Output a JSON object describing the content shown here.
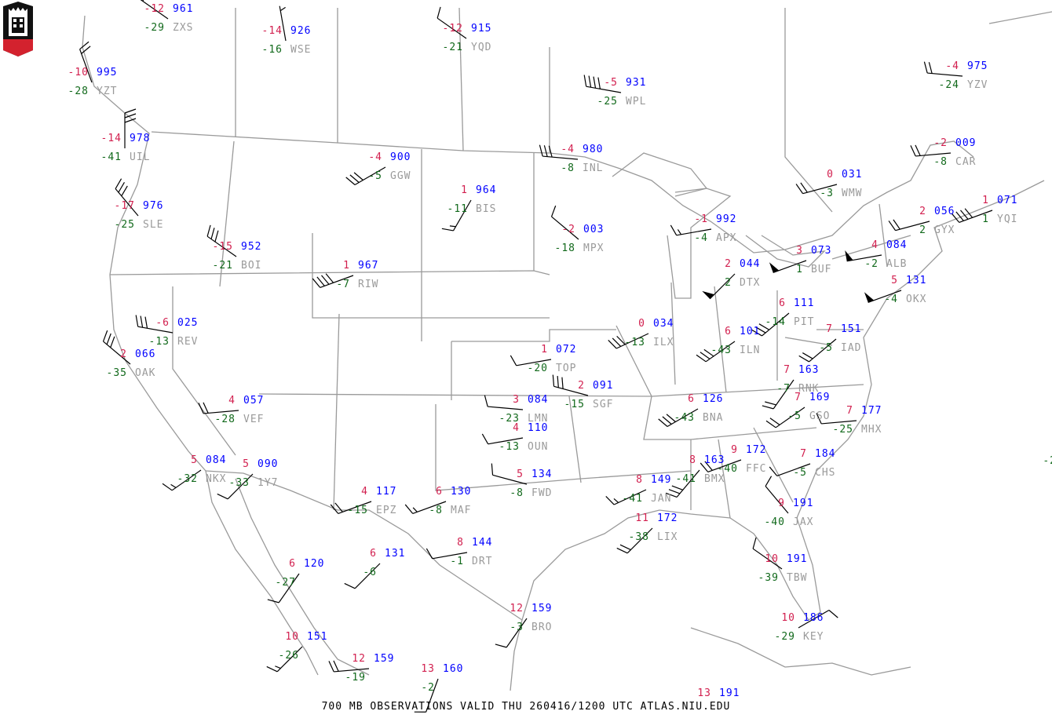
{
  "caption": "700 MB OBSERVATIONS VALID  THU 260416/1200 UTC  ATLAS.NIU.EDU",
  "logo": {
    "text": "NIU",
    "colors": {
      "top": "#111111",
      "bottom": "#d3222e"
    }
  },
  "colors": {
    "temperature": "#d2204f",
    "height": "#0000ff",
    "dewpoint": "#11691b",
    "station_id": "#9a9a9a",
    "map_lines": "#9a9a9a",
    "wind_barb": "#000000"
  },
  "stations": [
    {
      "id": "ZXS",
      "temp": "-12",
      "height": "961",
      "dewpoint": "-29",
      "wind_dir": 305,
      "wind_kt": 5
    },
    {
      "id": "WSE",
      "temp": "-14",
      "height": "926",
      "dewpoint": "-16",
      "wind_dir": 350,
      "wind_kt": 5
    },
    {
      "id": "YQD",
      "temp": "-12",
      "height": "915",
      "dewpoint": "-21",
      "wind_dir": 305,
      "wind_kt": 10
    },
    {
      "id": "YZT",
      "temp": "-10",
      "height": "995",
      "dewpoint": "-28",
      "wind_dir": 340,
      "wind_kt": 20
    },
    {
      "id": "WPL",
      "temp": "-5",
      "height": "931",
      "dewpoint": "-25",
      "wind_dir": 280,
      "wind_kt": 40
    },
    {
      "id": "YZV",
      "temp": "-4",
      "height": "975",
      "dewpoint": "-24",
      "wind_dir": 275,
      "wind_kt": 20
    },
    {
      "id": "UIL",
      "temp": "-14",
      "height": "978",
      "dewpoint": "-41",
      "wind_dir": 360,
      "wind_kt": 30
    },
    {
      "id": "INL",
      "temp": "-4",
      "height": "980",
      "dewpoint": "-8",
      "wind_dir": 275,
      "wind_kt": 30
    },
    {
      "id": "GGW",
      "temp": "-4",
      "height": "900",
      "dewpoint": "-5",
      "wind_dir": 240,
      "wind_kt": 30
    },
    {
      "id": "CAR",
      "temp": "-2",
      "height": "009",
      "dewpoint": "-8",
      "wind_dir": 265,
      "wind_kt": 20
    },
    {
      "id": "WMW",
      "temp": "0",
      "height": "031",
      "dewpoint": "-3",
      "wind_dir": 255,
      "wind_kt": 20
    },
    {
      "id": "SLE",
      "temp": "-17",
      "height": "976",
      "dewpoint": "-25",
      "wind_dir": 320,
      "wind_kt": 30
    },
    {
      "id": "BIS",
      "temp": "1",
      "height": "964",
      "dewpoint": "-11",
      "wind_dir": 210,
      "wind_kt": 15
    },
    {
      "id": "YQI",
      "temp": "1",
      "height": "071",
      "dewpoint": "1",
      "wind_dir": 250,
      "wind_kt": 40
    },
    {
      "id": "GYX",
      "temp": "2",
      "height": "056",
      "dewpoint": "2",
      "wind_dir": 255,
      "wind_kt": 20
    },
    {
      "id": "MPX",
      "temp": "-2",
      "height": "003",
      "dewpoint": "-18",
      "wind_dir": 310,
      "wind_kt": 10
    },
    {
      "id": "APX",
      "temp": "-1",
      "height": "992",
      "dewpoint": "-4",
      "wind_dir": 260,
      "wind_kt": 15
    },
    {
      "id": "BOI",
      "temp": "-15",
      "height": "952",
      "dewpoint": "-21",
      "wind_dir": 305,
      "wind_kt": 30
    },
    {
      "id": "RIW",
      "temp": "1",
      "height": "967",
      "dewpoint": "-7",
      "wind_dir": 250,
      "wind_kt": 40
    },
    {
      "id": "BUF",
      "temp": "3",
      "height": "073",
      "dewpoint": "1",
      "wind_dir": 250,
      "wind_kt": 50
    },
    {
      "id": "ALB",
      "temp": "4",
      "height": "084",
      "dewpoint": "-2",
      "wind_dir": 260,
      "wind_kt": 50
    },
    {
      "id": "DTX",
      "temp": "2",
      "height": "044",
      "dewpoint": "2",
      "wind_dir": 225,
      "wind_kt": 50
    },
    {
      "id": "OKX",
      "temp": "5",
      "height": "131",
      "dewpoint": "-4",
      "wind_dir": 250,
      "wind_kt": 50
    },
    {
      "id": "PIT",
      "temp": "6",
      "height": "111",
      "dewpoint": "-14",
      "wind_dir": 230,
      "wind_kt": 30
    },
    {
      "id": "ILN",
      "temp": "6",
      "height": "101",
      "dewpoint": "-43",
      "wind_dir": 235,
      "wind_kt": 30
    },
    {
      "id": "ILX",
      "temp": "0",
      "height": "034",
      "dewpoint": "-13",
      "wind_dir": 245,
      "wind_kt": 30
    },
    {
      "id": "REV",
      "temp": "-6",
      "height": "025",
      "dewpoint": "-13",
      "wind_dir": 280,
      "wind_kt": 30
    },
    {
      "id": "OAK",
      "temp": "2",
      "height": "066",
      "dewpoint": "-35",
      "wind_dir": 310,
      "wind_kt": 30
    },
    {
      "id": "TOP",
      "temp": "1",
      "height": "072",
      "dewpoint": "-20",
      "wind_dir": 260,
      "wind_kt": 10
    },
    {
      "id": "SGF",
      "temp": "2",
      "height": "091",
      "dewpoint": "-15",
      "wind_dir": 285,
      "wind_kt": 30
    },
    {
      "id": "IAD",
      "temp": "7",
      "height": "151",
      "dewpoint": "-5",
      "wind_dir": 230,
      "wind_kt": 20
    },
    {
      "id": "RNK",
      "temp": "7",
      "height": "163",
      "dewpoint": "-7",
      "wind_dir": 215,
      "wind_kt": 20
    },
    {
      "id": "GSO",
      "temp": "7",
      "height": "169",
      "dewpoint": "-5",
      "wind_dir": 235,
      "wind_kt": 20
    },
    {
      "id": "MHX",
      "temp": "7",
      "height": "177",
      "dewpoint": "-25",
      "wind_dir": 265,
      "wind_kt": 10
    },
    {
      "id": "BNA",
      "temp": "6",
      "height": "126",
      "dewpoint": "-43",
      "wind_dir": 240,
      "wind_kt": 30
    },
    {
      "id": "VEF",
      "temp": "4",
      "height": "057",
      "dewpoint": "-28",
      "wind_dir": 265,
      "wind_kt": 20
    },
    {
      "id": "LMN",
      "temp": "3",
      "height": "084",
      "dewpoint": "-23",
      "wind_dir": 275,
      "wind_kt": 10
    },
    {
      "id": "OUN",
      "temp": "4",
      "height": "110",
      "dewpoint": "-13",
      "wind_dir": 260,
      "wind_kt": 10
    },
    {
      "id": "NKX",
      "temp": "5",
      "height": "084",
      "dewpoint": "-32",
      "wind_dir": 235,
      "wind_kt": 15
    },
    {
      "id": "1Y7",
      "temp": "5",
      "height": "090",
      "dewpoint": "-33",
      "wind_dir": 225,
      "wind_kt": 10
    },
    {
      "id": "FWD",
      "temp": "5",
      "height": "134",
      "dewpoint": "-8",
      "wind_dir": 285,
      "wind_kt": 10
    },
    {
      "id": "EPZ",
      "temp": "4",
      "height": "117",
      "dewpoint": "-15",
      "wind_dir": 250,
      "wind_kt": 20
    },
    {
      "id": "MAF",
      "temp": "6",
      "height": "130",
      "dewpoint": "-8",
      "wind_dir": 250,
      "wind_kt": 15
    },
    {
      "id": "JAN",
      "temp": "8",
      "height": "149",
      "dewpoint": "-41",
      "wind_dir": 245,
      "wind_kt": 15
    },
    {
      "id": "BMX",
      "temp": "8",
      "height": "163",
      "dewpoint": "-41",
      "wind_dir": 220,
      "wind_kt": 30
    },
    {
      "id": "FFC",
      "temp": "9",
      "height": "172",
      "dewpoint": "-40",
      "wind_dir": 250,
      "wind_kt": 20
    },
    {
      "id": "CHS",
      "temp": "7",
      "height": "184",
      "dewpoint": "-5",
      "wind_dir": 250,
      "wind_kt": 10
    },
    {
      "id": "JAX",
      "temp": "9",
      "height": "191",
      "dewpoint": "-40",
      "wind_dir": 320,
      "wind_kt": 10
    },
    {
      "id": "LIX",
      "temp": "11",
      "height": "172",
      "dewpoint": "-38",
      "wind_dir": 225,
      "wind_kt": 20
    },
    {
      "id": "DRT",
      "temp": "8",
      "height": "144",
      "dewpoint": "-1",
      "wind_dir": 260,
      "wind_kt": 10
    },
    {
      "id": "TBW",
      "temp": "10",
      "height": "191",
      "dewpoint": "-39",
      "wind_dir": 305,
      "wind_kt": 10
    },
    {
      "id": "KEY",
      "temp": "10",
      "height": "186",
      "dewpoint": "-29",
      "wind_dir": 60,
      "wind_kt": 10
    },
    {
      "id": "BRO",
      "temp": "12",
      "height": "159",
      "dewpoint": "-3",
      "wind_dir": 215,
      "wind_kt": 10
    },
    {
      "id": "",
      "temp": "6",
      "height": "131",
      "dewpoint": "-6",
      "wind_dir": 225,
      "wind_kt": 10
    },
    {
      "id": "",
      "temp": "6",
      "height": "120",
      "dewpoint": "-27",
      "wind_dir": 215,
      "wind_kt": 10
    },
    {
      "id": "",
      "temp": "10",
      "height": "151",
      "dewpoint": "-26",
      "wind_dir": 225,
      "wind_kt": 15
    },
    {
      "id": "",
      "temp": "12",
      "height": "159",
      "dewpoint": "-19",
      "wind_dir": 265,
      "wind_kt": 20
    },
    {
      "id": "",
      "temp": "13",
      "height": "160",
      "dewpoint": "-2",
      "wind_dir": 200,
      "wind_kt": 10
    },
    {
      "id": "",
      "temp": "13",
      "height": "191",
      "dewpoint": "",
      "wind_dir": 0,
      "wind_kt": 0
    },
    {
      "id": "",
      "temp": "",
      "height": "",
      "dewpoint": "-2",
      "wind_dir": 0,
      "wind_kt": 0
    }
  ]
}
